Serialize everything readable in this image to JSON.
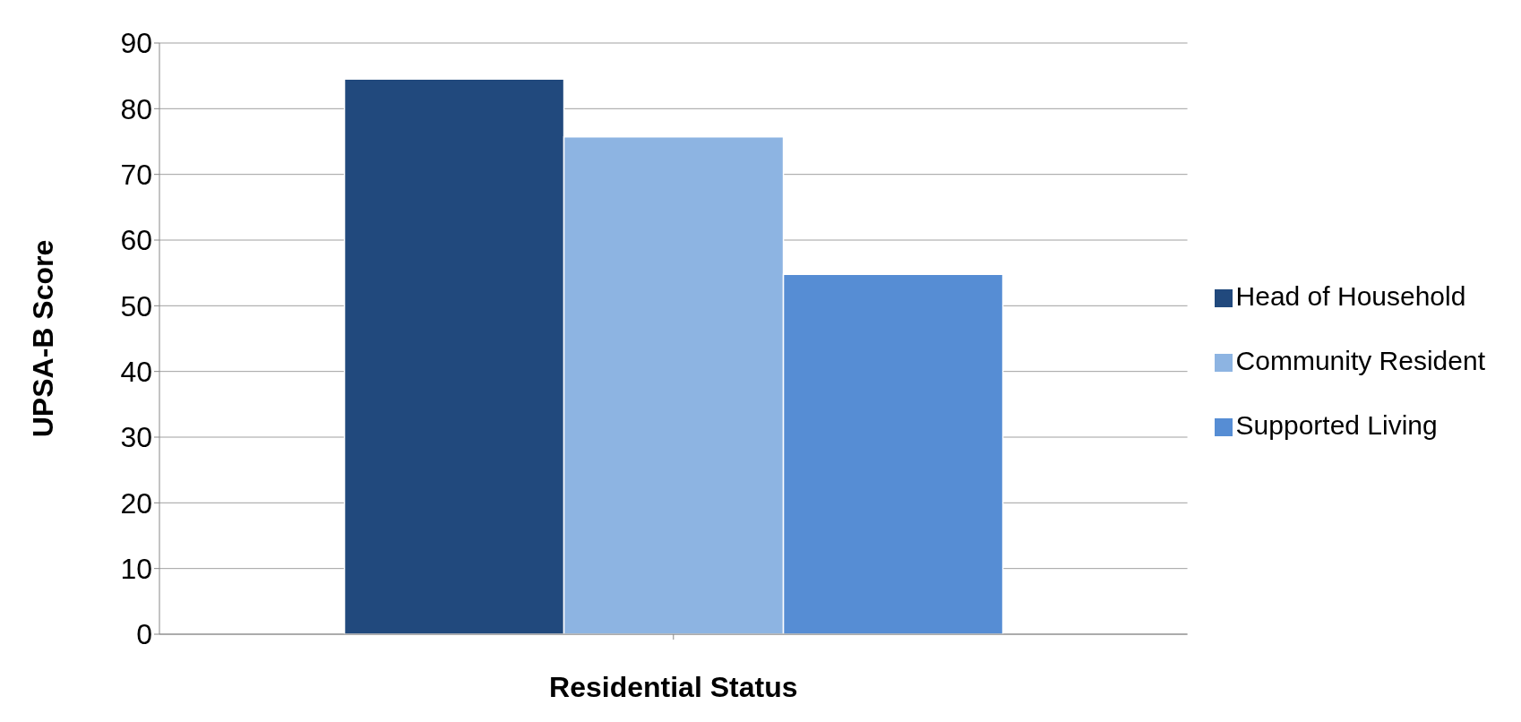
{
  "chart_data": {
    "type": "bar",
    "xlabel": "Residential Status",
    "ylabel": "UPSA-B Score",
    "categories": [
      null
    ],
    "series": [
      {
        "name": "Head of Household",
        "color": "#21497d",
        "values": [
          84.5
        ]
      },
      {
        "name": "Community Resident",
        "color": "#8db4e2",
        "values": [
          75.7
        ]
      },
      {
        "name": "Supported Living",
        "color": "#568dd4",
        "values": [
          54.8
        ]
      }
    ],
    "ylim": [
      0,
      90
    ],
    "yticks": [
      0,
      10,
      20,
      30,
      40,
      50,
      60,
      70,
      80,
      90
    ],
    "grid": "y",
    "legend": "right"
  }
}
